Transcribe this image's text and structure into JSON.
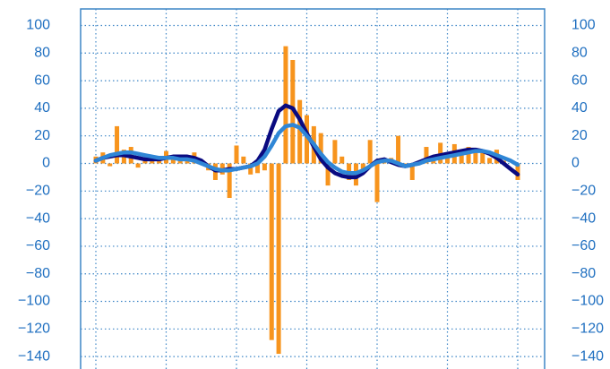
{
  "chart_data": {
    "type": "bar-line",
    "categories": [
      null,
      null,
      null,
      null,
      null,
      null,
      null,
      null,
      null,
      null,
      null,
      null,
      null,
      null,
      null,
      null,
      null,
      null,
      null,
      null,
      null,
      null,
      null,
      null,
      null,
      null,
      null,
      null,
      null,
      null,
      null,
      null,
      null,
      null,
      null,
      null,
      null,
      null,
      null,
      null,
      null,
      null,
      null,
      null,
      null,
      null,
      null,
      null,
      null,
      null,
      null,
      null,
      null,
      null,
      null,
      null,
      null,
      null,
      null,
      null,
      null
    ],
    "series": [
      {
        "type": "bar",
        "color": "#f7941d",
        "values": [
          5,
          8,
          -2,
          27,
          10,
          12,
          -3,
          3,
          5,
          3,
          9,
          4,
          5,
          3,
          8,
          0,
          -5,
          -12,
          -8,
          -25,
          13,
          5,
          -8,
          -7,
          -5,
          -128,
          -138,
          85,
          75,
          46,
          35,
          27,
          22,
          -16,
          17,
          5,
          -12,
          -16,
          -4,
          17,
          -28,
          3,
          4,
          20,
          -2,
          -12,
          2,
          12,
          2,
          15,
          5,
          14,
          8,
          12,
          8,
          10,
          4,
          10,
          2,
          0,
          -12
        ]
      },
      {
        "type": "line",
        "color": "#0a0a80",
        "values": [
          2,
          4,
          5,
          6,
          6,
          5,
          4,
          3,
          3,
          3,
          4,
          5,
          5,
          5,
          4,
          2,
          -2,
          -5,
          -5,
          -4,
          -4,
          -3,
          -2,
          2,
          10,
          25,
          38,
          42,
          40,
          32,
          22,
          12,
          3,
          -3,
          -7,
          -9,
          -10,
          -10,
          -7,
          -2,
          2,
          3,
          1,
          -1,
          -2,
          -1,
          1,
          3,
          5,
          6,
          7,
          8,
          9,
          10,
          10,
          9,
          7,
          4,
          0,
          -4,
          -8
        ]
      },
      {
        "type": "line",
        "axis": "y2",
        "color": "#2f86d6",
        "values": [
          2,
          4,
          6,
          7,
          8,
          8,
          7,
          6,
          5,
          4,
          4,
          4,
          3,
          3,
          2,
          0,
          -2,
          -4,
          -5,
          -5,
          -4,
          -3,
          -2,
          0,
          5,
          13,
          22,
          27,
          28,
          26,
          20,
          14,
          7,
          1,
          -3,
          -6,
          -7,
          -7,
          -5,
          -2,
          1,
          2,
          2,
          0,
          -2,
          -1,
          0,
          2,
          3,
          4,
          5,
          6,
          7,
          8,
          9,
          9,
          8,
          6,
          4,
          2,
          -1
        ]
      }
    ],
    "ylim": [
      -149,
      112
    ],
    "yticks": [
      {
        "value": -140,
        "label": "−140"
      },
      {
        "value": -120,
        "label": "−120"
      },
      {
        "value": -100,
        "label": "−100"
      },
      {
        "value": -80,
        "label": "−80"
      },
      {
        "value": -60,
        "label": "−60"
      },
      {
        "value": -40,
        "label": "−40"
      },
      {
        "value": -20,
        "label": "−20"
      },
      0,
      20,
      40,
      60,
      80,
      100
    ],
    "y2lim": [
      -149,
      112
    ],
    "y2ticks": [
      {
        "value": -140,
        "label": "−140"
      },
      {
        "value": -120,
        "label": "−120"
      },
      {
        "value": -100,
        "label": "−100"
      },
      {
        "value": -80,
        "label": "−80"
      },
      {
        "value": -60,
        "label": "−60"
      },
      {
        "value": -40,
        "label": "−40"
      },
      {
        "value": -20,
        "label": "−20"
      },
      0,
      20,
      40,
      60,
      80,
      100
    ],
    "grid": true
  }
}
